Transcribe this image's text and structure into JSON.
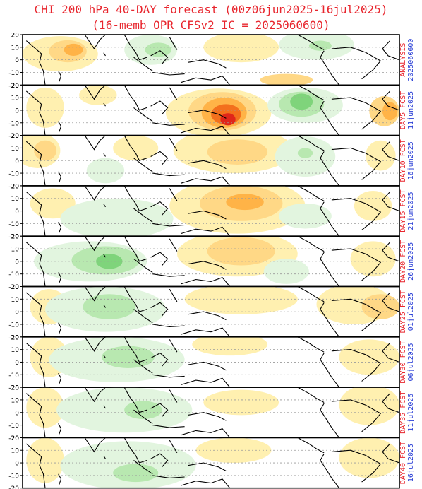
{
  "title_line1": "CHI 200 hPa 40-DAY forecast (00z06jun2025-16jul2025)",
  "title_line2": "(16-memb OPR CFSv2 IC = 2025060600)",
  "y_ticks": [
    "20",
    "10",
    "0",
    "-10",
    "-20"
  ],
  "colors": {
    "title": "#e8262e",
    "label_red": "#e8262e",
    "label_blue": "#2a3fd6",
    "orange_light": "#fff0b0",
    "orange_mid": "#ffd886",
    "orange_dark": "#ffb347",
    "orange_deep": "#f3701d",
    "red_core": "#e0261a",
    "green_light": "#e2f5df",
    "green_mid": "#b8e8b0",
    "green_dark": "#7fd47b",
    "green_deep": "#46b54b",
    "coast": "#000000",
    "grid": "#9a9a9a"
  },
  "panels": [
    {
      "label": "ANALYSIS",
      "date": "2025060600"
    },
    {
      "label": "DAY5 FCST",
      "date": "11jun2025"
    },
    {
      "label": "DAY10 FCST",
      "date": "16jun2025"
    },
    {
      "label": "DAY15 FCST",
      "date": "21jun2025"
    },
    {
      "label": "DAY20 FCST",
      "date": "26jun2025"
    },
    {
      "label": "DAY25 FCST",
      "date": "01jul2025"
    },
    {
      "label": "DAY30 FCST",
      "date": "06jul2025"
    },
    {
      "label": "DAY35 FCST",
      "date": "11jul2025"
    },
    {
      "label": "DAY40 FCST",
      "date": "16jul2025"
    }
  ]
}
